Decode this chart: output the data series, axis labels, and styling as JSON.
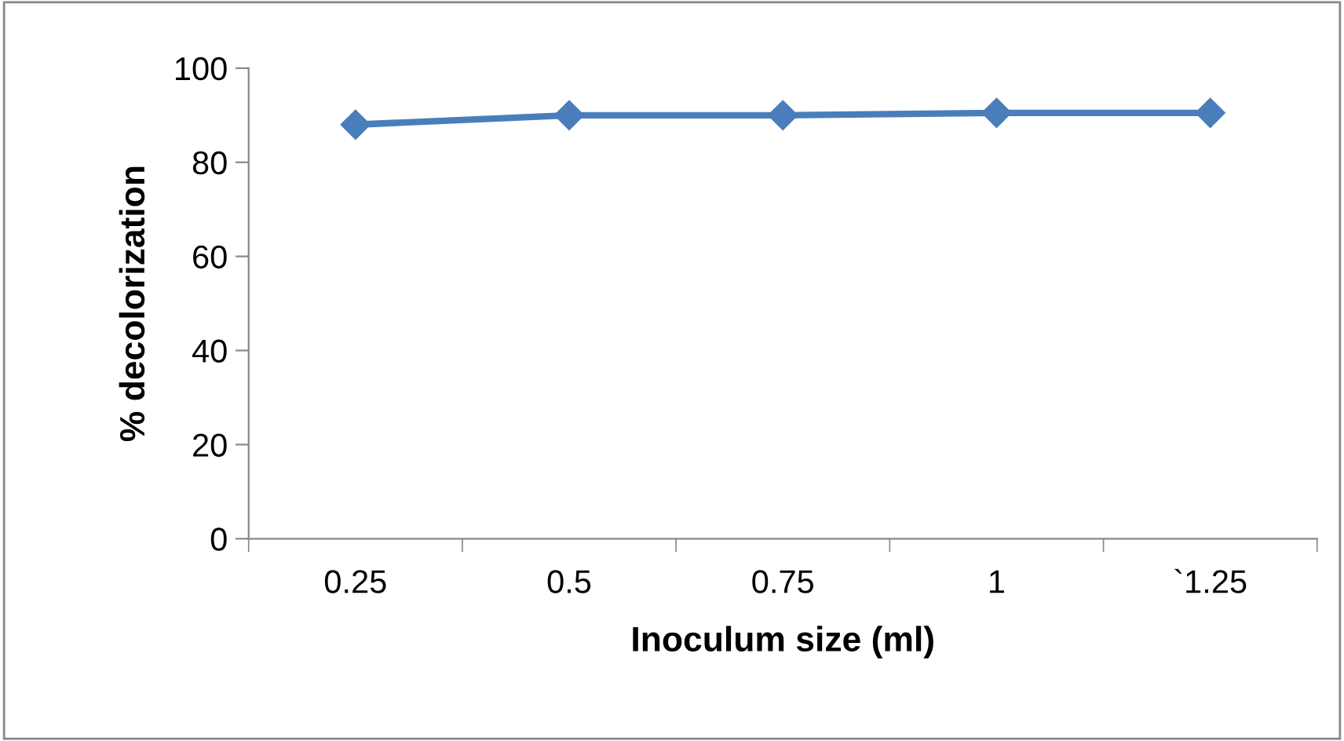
{
  "chart_data": {
    "type": "line",
    "xlabel": "Inoculum size (ml)",
    "ylabel": "% decolorization",
    "categories": [
      "0.25",
      "0.5",
      "0.75",
      "1",
      "`1.25"
    ],
    "series": [
      {
        "color": "#4a7ebb",
        "values": [
          88,
          90,
          90,
          90.5,
          90.5
        ]
      }
    ],
    "ylim": [
      0,
      100
    ],
    "yticks": [
      0,
      20,
      40,
      60,
      80,
      100
    ],
    "grid": false,
    "legend": false,
    "marker": "diamond",
    "line_style": "solid"
  }
}
